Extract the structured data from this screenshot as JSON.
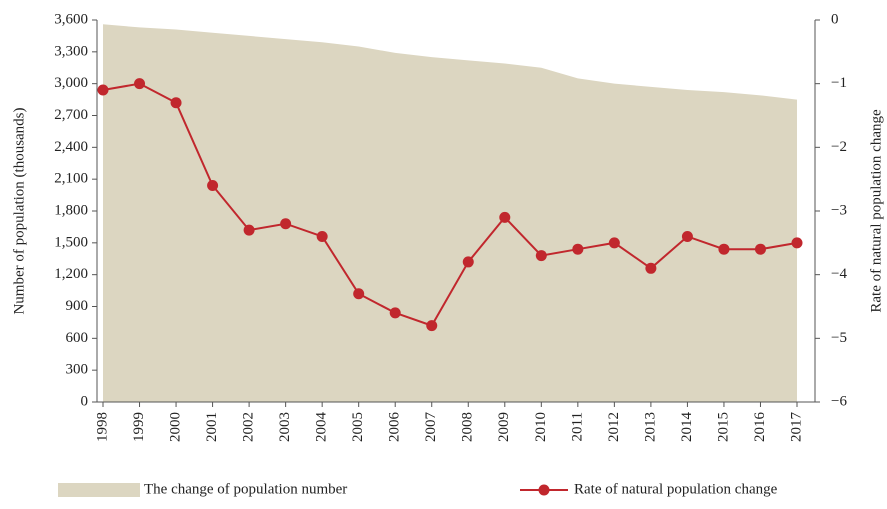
{
  "chart_data": {
    "type": "area-line",
    "categories": [
      "1998",
      "1999",
      "2000",
      "2001",
      "2002",
      "2003",
      "2004",
      "2005",
      "2006",
      "2007",
      "2008",
      "2009",
      "2010",
      "2011",
      "2012",
      "2013",
      "2014",
      "2015",
      "2016",
      "2017"
    ],
    "series": [
      {
        "name": "The change of population number",
        "color": "#dcd6c1",
        "type": "area",
        "values": [
          3560,
          3530,
          3510,
          3480,
          3450,
          3420,
          3390,
          3350,
          3290,
          3250,
          3220,
          3190,
          3150,
          3050,
          3000,
          2970,
          2940,
          2920,
          2890,
          2850
        ]
      },
      {
        "name": "Rate of natural population change",
        "color": "#c1272d",
        "type": "line",
        "axis": "y2",
        "values": [
          -1.1,
          -1.0,
          -1.3,
          -2.6,
          -3.3,
          -3.2,
          -3.4,
          -4.3,
          -4.6,
          -4.8,
          -3.8,
          -3.1,
          -3.7,
          -3.6,
          -3.5,
          -3.9,
          -3.4,
          -3.6,
          -3.6,
          -3.5
        ]
      }
    ],
    "ylabel": "Number of population (thousands)",
    "y2label": "Rate of natural population change",
    "ylim": [
      0,
      3600
    ],
    "yticks": [
      0,
      300,
      600,
      900,
      {
        "value": 1200,
        "label": "1,200"
      },
      {
        "value": 1500,
        "label": "1,500"
      },
      {
        "value": 1800,
        "label": "1,800"
      },
      {
        "value": 2100,
        "label": "2,100"
      },
      {
        "value": 2400,
        "label": "2,400"
      },
      {
        "value": 2700,
        "label": "2,700"
      },
      {
        "value": 3000,
        "label": "3,000"
      },
      {
        "value": 3300,
        "label": "3,300"
      },
      {
        "value": 3600,
        "label": "3,600"
      }
    ],
    "y2lim": [
      -6,
      0
    ],
    "y2ticks": [
      0,
      {
        "value": -1,
        "label": "−1"
      },
      {
        "value": -2,
        "label": "−2"
      },
      {
        "value": -3,
        "label": "−3"
      },
      {
        "value": -4,
        "label": "−4"
      },
      {
        "value": -5,
        "label": "−5"
      },
      {
        "value": -6,
        "label": "−6"
      }
    ],
    "legend": "bottom"
  }
}
